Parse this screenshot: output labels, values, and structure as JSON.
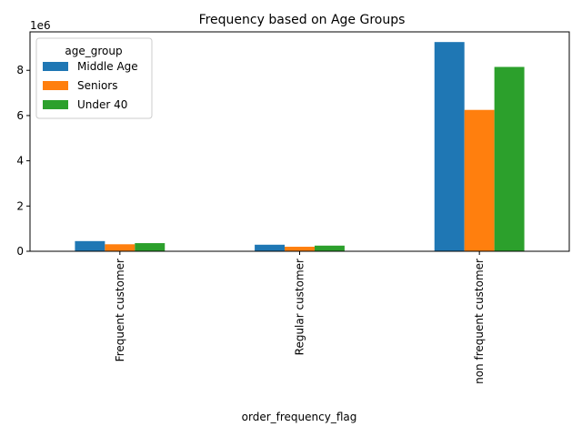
{
  "chart_data": {
    "type": "bar",
    "title": "Frequency based on Age Groups",
    "xlabel": "order_frequency_flag",
    "ylabel": "",
    "y_offset_label": "1e6",
    "categories": [
      "Frequent customer",
      "Regular customer",
      "non frequent customer"
    ],
    "series": [
      {
        "name": "Middle Age",
        "color": "#1f77b4",
        "values": [
          450000,
          290000,
          9250000
        ]
      },
      {
        "name": "Seniors",
        "color": "#ff7f0e",
        "values": [
          310000,
          200000,
          6250000
        ]
      },
      {
        "name": "Under 40",
        "color": "#2ca02c",
        "values": [
          360000,
          250000,
          8150000
        ]
      }
    ],
    "ylim": [
      0,
      9700000
    ],
    "yticks": [
      0,
      2000000,
      4000000,
      6000000,
      8000000
    ],
    "ytick_labels": [
      "0",
      "2",
      "4",
      "6",
      "8"
    ],
    "legend": {
      "title": "age_group",
      "placement": "top-left"
    },
    "grid": false
  }
}
